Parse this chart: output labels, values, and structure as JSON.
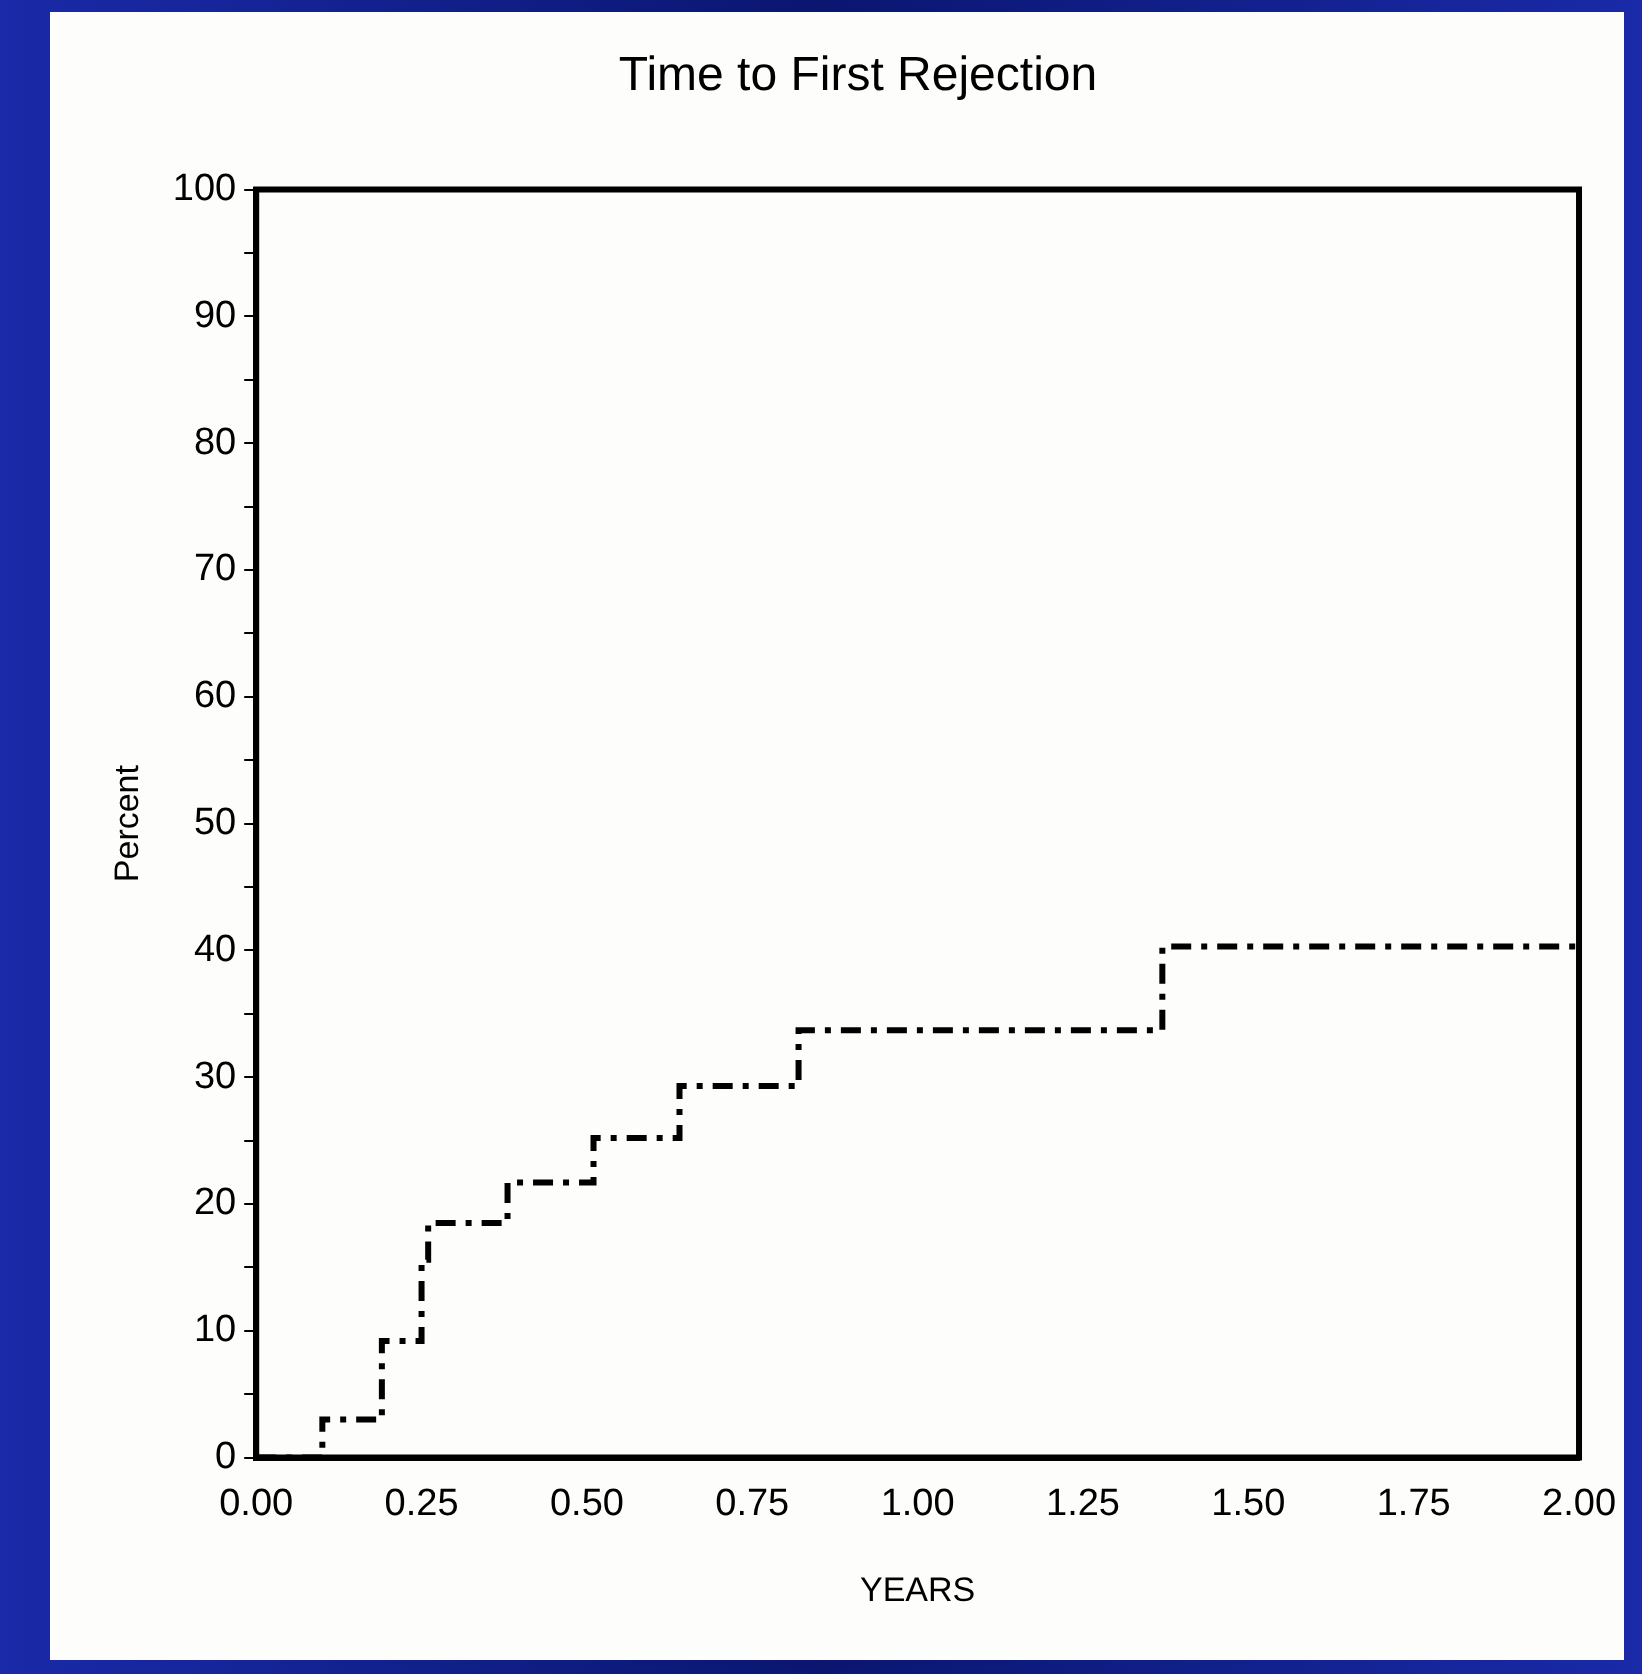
{
  "chart_data": {
    "type": "step",
    "title": "Time to First Rejection",
    "xlabel": "YEARS",
    "ylabel": "Percent",
    "x": [
      0,
      0.1,
      0.19,
      0.25,
      0.26,
      0.38,
      0.51,
      0.64,
      0.82,
      1.37,
      2.0
    ],
    "series": [
      {
        "color": "#000000",
        "values": [
          0,
          3,
          9.2,
          15.6,
          18.5,
          21.7,
          25.2,
          29.3,
          33.7,
          40.3,
          40.3
        ]
      }
    ],
    "xlim": [
      0,
      2
    ],
    "xticks": [
      {
        "value": 0,
        "label": "0.00"
      },
      {
        "value": 0.25,
        "label": "0.25"
      },
      {
        "value": 0.5,
        "label": "0.50"
      },
      {
        "value": 0.75,
        "label": "0.75"
      },
      {
        "value": 1,
        "label": "1.00"
      },
      {
        "value": 1.25,
        "label": "1.25"
      },
      {
        "value": 1.5,
        "label": "1.50"
      },
      {
        "value": 1.75,
        "label": "1.75"
      },
      {
        "value": 2,
        "label": "2.00"
      }
    ],
    "ylim": [
      0,
      100
    ],
    "yticks": [
      0,
      {
        "value": 5,
        "label": null
      },
      10,
      {
        "value": 15,
        "label": null
      },
      20,
      {
        "value": 25,
        "label": null
      },
      30,
      {
        "value": 35,
        "label": null
      },
      40,
      {
        "value": 45,
        "label": null
      },
      50,
      {
        "value": 55,
        "label": null
      },
      60,
      {
        "value": 65,
        "label": null
      },
      70,
      {
        "value": 75,
        "label": null
      },
      80,
      {
        "value": 85,
        "label": null
      },
      90,
      {
        "value": 95,
        "label": null
      },
      100
    ],
    "grid": false,
    "legend": false,
    "marker": "none",
    "line_style": "dashed"
  }
}
